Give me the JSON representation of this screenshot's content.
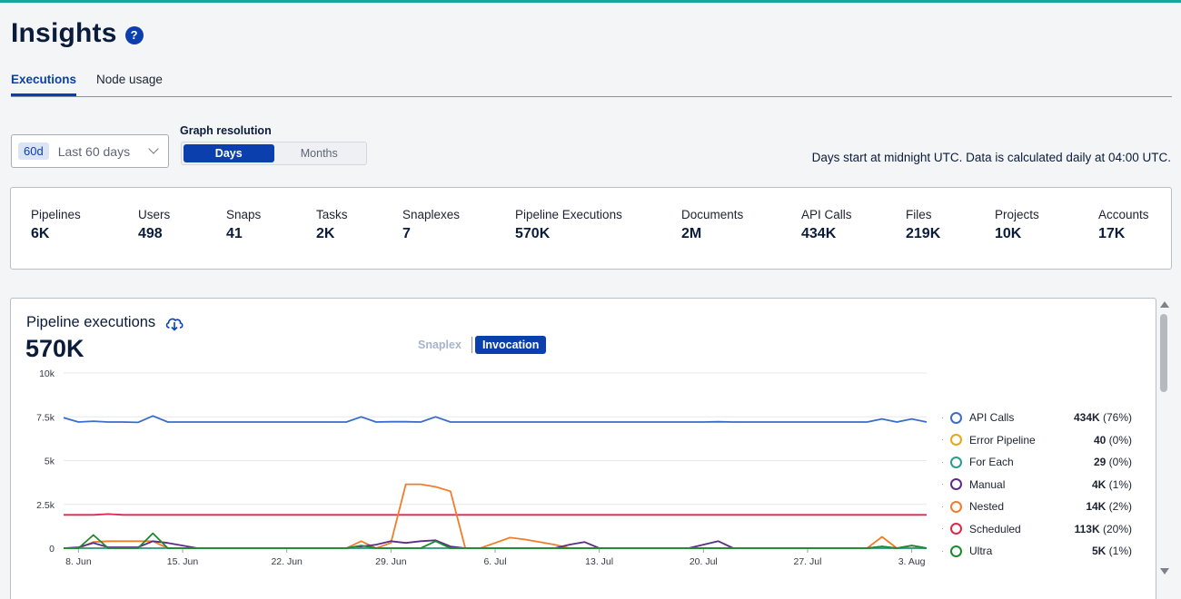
{
  "header": {
    "title": "Insights",
    "help_icon": "question-circle-icon"
  },
  "tabs": [
    {
      "label": "Executions",
      "active": true
    },
    {
      "label": "Node usage",
      "active": false
    }
  ],
  "filters": {
    "range_badge": "60d",
    "range_label": "Last 60 days",
    "resolution_label": "Graph resolution",
    "resolution_options": [
      "Days",
      "Months"
    ],
    "resolution_selected": "Days",
    "note": "Days start at midnight UTC. Data is calculated daily at 04:00 UTC."
  },
  "stats": [
    {
      "label": "Pipelines",
      "value": "6K"
    },
    {
      "label": "Users",
      "value": "498"
    },
    {
      "label": "Snaps",
      "value": "41"
    },
    {
      "label": "Tasks",
      "value": "2K"
    },
    {
      "label": "Snaplexes",
      "value": "7"
    },
    {
      "label": "Pipeline Executions",
      "value": "570K"
    },
    {
      "label": "Documents",
      "value": "2M"
    },
    {
      "label": "API Calls",
      "value": "434K"
    },
    {
      "label": "Files",
      "value": "219K"
    },
    {
      "label": "Projects",
      "value": "10K"
    },
    {
      "label": "Accounts",
      "value": "17K"
    }
  ],
  "chart_card": {
    "title": "Pipeline executions",
    "total": "570K",
    "view_options": [
      "Snaplex",
      "Invocation"
    ],
    "view_selected": "Invocation"
  },
  "chart_data": {
    "type": "line",
    "title": "",
    "xlabel": "",
    "ylabel": "",
    "ylim": [
      0,
      10000
    ],
    "y_ticks": [
      "0",
      "2.5k",
      "5k",
      "7.5k",
      "10k"
    ],
    "y_tick_values": [
      0,
      2500,
      5000,
      7500,
      10000
    ],
    "x_ticks": [
      "8. Jun",
      "15. Jun",
      "22. Jun",
      "29. Jun",
      "6. Jul",
      "13. Jul",
      "20. Jul",
      "27. Jul",
      "3. Aug"
    ],
    "x_tick_days": [
      8,
      15,
      22,
      29,
      36,
      43,
      50,
      57,
      64
    ],
    "x": [
      7,
      8,
      9,
      10,
      11,
      12,
      13,
      14,
      15,
      16,
      17,
      18,
      19,
      20,
      21,
      22,
      23,
      24,
      25,
      26,
      27,
      28,
      29,
      30,
      31,
      32,
      33,
      34,
      35,
      36,
      37,
      38,
      39,
      40,
      41,
      42,
      43,
      44,
      45,
      46,
      47,
      48,
      49,
      50,
      51,
      52,
      53,
      54,
      55,
      56,
      57,
      58,
      59,
      60,
      61,
      62,
      63,
      64,
      65
    ],
    "x_note": "day numbers counted from 1 June",
    "grid": true,
    "legend_position": "right",
    "series": [
      {
        "name": "API Calls",
        "color": "#3b6ccc",
        "total": "434K",
        "share": "(76%)",
        "values": [
          7450,
          7200,
          7250,
          7200,
          7200,
          7180,
          7550,
          7200,
          7200,
          7200,
          7200,
          7200,
          7200,
          7200,
          7200,
          7200,
          7200,
          7200,
          7200,
          7200,
          7500,
          7200,
          7220,
          7220,
          7200,
          7500,
          7200,
          7200,
          7200,
          7200,
          7200,
          7200,
          7200,
          7200,
          7200,
          7200,
          7200,
          7200,
          7200,
          7200,
          7200,
          7200,
          7200,
          7200,
          7220,
          7200,
          7200,
          7200,
          7200,
          7200,
          7200,
          7200,
          7200,
          7200,
          7200,
          7380,
          7200,
          7380,
          7200
        ]
      },
      {
        "name": "Error Pipeline",
        "color": "#e6a817",
        "total": "40",
        "share": "(0%)",
        "values": [
          0,
          0,
          0,
          0,
          0,
          0,
          0,
          0,
          0,
          0,
          0,
          0,
          0,
          0,
          0,
          0,
          0,
          0,
          0,
          0,
          0,
          0,
          0,
          0,
          0,
          0,
          0,
          0,
          0,
          0,
          0,
          0,
          0,
          0,
          0,
          0,
          0,
          0,
          0,
          0,
          0,
          0,
          0,
          0,
          0,
          0,
          0,
          0,
          0,
          0,
          0,
          0,
          0,
          0,
          0,
          0,
          0,
          0,
          0
        ]
      },
      {
        "name": "For Each",
        "color": "#2a9d8f",
        "total": "29",
        "share": "(0%)",
        "values": [
          0,
          0,
          0,
          0,
          0,
          0,
          0,
          0,
          0,
          0,
          0,
          0,
          0,
          0,
          0,
          0,
          0,
          0,
          0,
          0,
          0,
          0,
          0,
          0,
          0,
          0,
          0,
          0,
          0,
          0,
          0,
          0,
          0,
          0,
          0,
          0,
          0,
          0,
          0,
          0,
          0,
          0,
          0,
          0,
          0,
          0,
          0,
          0,
          0,
          0,
          0,
          0,
          0,
          0,
          0,
          0,
          0,
          0,
          0
        ]
      },
      {
        "name": "Manual",
        "color": "#5b2d86",
        "total": "4K",
        "share": "(1%)",
        "values": [
          0,
          50,
          300,
          50,
          50,
          50,
          400,
          300,
          150,
          0,
          0,
          0,
          0,
          0,
          0,
          0,
          0,
          0,
          0,
          0,
          100,
          200,
          400,
          300,
          400,
          450,
          100,
          0,
          0,
          0,
          0,
          0,
          0,
          0,
          200,
          350,
          0,
          0,
          0,
          0,
          0,
          0,
          0,
          200,
          400,
          0,
          0,
          0,
          0,
          0,
          0,
          0,
          0,
          0,
          0,
          100,
          0,
          150,
          0
        ]
      },
      {
        "name": "Nested",
        "color": "#f07d2a",
        "total": "14K",
        "share": "(2%)",
        "values": [
          0,
          0,
          350,
          400,
          400,
          400,
          400,
          0,
          0,
          0,
          0,
          0,
          0,
          0,
          0,
          0,
          0,
          0,
          0,
          0,
          400,
          0,
          300,
          3650,
          3650,
          3500,
          3250,
          0,
          0,
          300,
          600,
          500,
          350,
          200,
          0,
          0,
          0,
          0,
          0,
          0,
          0,
          0,
          0,
          0,
          0,
          0,
          0,
          0,
          0,
          0,
          0,
          0,
          0,
          0,
          0,
          650,
          0,
          0,
          0
        ]
      },
      {
        "name": "Scheduled",
        "color": "#e0284a",
        "total": "113K",
        "share": "(20%)",
        "values": [
          1900,
          1900,
          1900,
          1950,
          1900,
          1900,
          1900,
          1900,
          1900,
          1900,
          1900,
          1900,
          1900,
          1900,
          1900,
          1900,
          1900,
          1900,
          1900,
          1900,
          1900,
          1900,
          1900,
          1900,
          1900,
          1900,
          1900,
          1900,
          1900,
          1900,
          1900,
          1900,
          1900,
          1900,
          1900,
          1900,
          1900,
          1900,
          1900,
          1900,
          1900,
          1900,
          1900,
          1900,
          1900,
          1900,
          1900,
          1900,
          1900,
          1900,
          1900,
          1900,
          1900,
          1900,
          1900,
          1900,
          1900,
          1900,
          1900
        ]
      },
      {
        "name": "Ultra",
        "color": "#1e8a2e",
        "total": "5K",
        "share": "(1%)",
        "values": [
          0,
          0,
          750,
          0,
          0,
          0,
          850,
          0,
          0,
          0,
          0,
          0,
          0,
          0,
          0,
          0,
          0,
          0,
          0,
          0,
          150,
          0,
          0,
          0,
          0,
          400,
          0,
          0,
          0,
          0,
          0,
          0,
          0,
          0,
          0,
          0,
          0,
          0,
          0,
          0,
          0,
          0,
          0,
          0,
          0,
          0,
          0,
          0,
          0,
          0,
          0,
          0,
          0,
          0,
          0,
          100,
          0,
          150,
          0
        ]
      }
    ]
  },
  "scrollbar": {
    "up_icon": "arrow-up-icon",
    "down_icon": "arrow-down-icon"
  }
}
